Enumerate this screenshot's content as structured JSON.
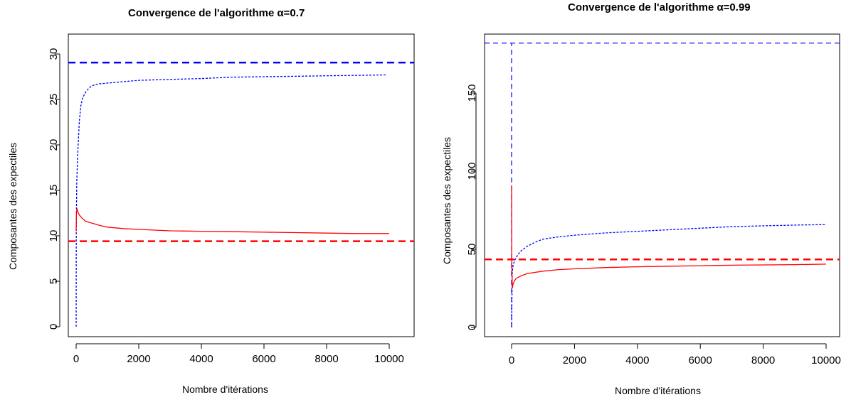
{
  "chart_data": [
    {
      "type": "line",
      "title": "Convergence de l'algorithme α=0.7",
      "xlabel": "Nombre d'itérations",
      "ylabel": "Composantes des expectiles",
      "xlim": [
        0,
        10000
      ],
      "ylim": [
        0,
        30
      ],
      "xticks": [
        "0",
        "2000",
        "4000",
        "6000",
        "8000",
        "10000"
      ],
      "yticks": [
        "0",
        "5",
        "10",
        "15",
        "20",
        "25",
        "30"
      ],
      "xtick_values": [
        0,
        2000,
        4000,
        6000,
        8000,
        10000
      ],
      "ytick_values": [
        0,
        5,
        10,
        15,
        20,
        25,
        30
      ],
      "hlines": [
        {
          "y": 29.05,
          "color": "#0000ff"
        },
        {
          "y": 9.4,
          "color": "#ff0000"
        }
      ],
      "series": [
        {
          "color": "#0000ff",
          "style": "dashed",
          "x": [
            0,
            5,
            20,
            50,
            100,
            150,
            200,
            300,
            400,
            500,
            700,
            1000,
            1500,
            2000,
            3000,
            4000,
            5000,
            6000,
            7000,
            8000,
            9000,
            9900
          ],
          "y": [
            0,
            11,
            16,
            19,
            22.5,
            24.3,
            25.1,
            25.8,
            26.2,
            26.5,
            26.7,
            26.8,
            26.95,
            27.1,
            27.2,
            27.3,
            27.45,
            27.5,
            27.55,
            27.6,
            27.65,
            27.7
          ]
        },
        {
          "color": "#ff0000",
          "style": "solid",
          "x": [
            0,
            10,
            30,
            60,
            100,
            200,
            300,
            500,
            800,
            1000,
            1500,
            2000,
            3000,
            4000,
            5000,
            6000,
            7000,
            8000,
            9000,
            10000
          ],
          "y": [
            10.5,
            12.5,
            13.0,
            12.6,
            12.3,
            11.9,
            11.6,
            11.4,
            11.1,
            10.95,
            10.8,
            10.7,
            10.55,
            10.5,
            10.45,
            10.4,
            10.35,
            10.3,
            10.25,
            10.25
          ]
        }
      ]
    },
    {
      "type": "line",
      "title": "Convergence de l'algorithme α=0.99",
      "xlabel": "Nombre d'itérations",
      "ylabel": "Composantes des expectiles",
      "xlim": [
        0,
        10000
      ],
      "ylim": [
        0,
        182
      ],
      "xticks": [
        "0",
        "2000",
        "4000",
        "6000",
        "8000",
        "10000"
      ],
      "yticks": [
        "0",
        "50",
        "100",
        "150"
      ],
      "xtick_values": [
        0,
        2000,
        4000,
        6000,
        8000,
        10000
      ],
      "ytick_values": [
        0,
        50,
        100,
        150
      ],
      "hlines": [
        {
          "y": 182,
          "color": "#0000ff",
          "style": "thin-dashed"
        },
        {
          "y": 43.5,
          "color": "#ff0000"
        }
      ],
      "vlines": [
        {
          "x": 0,
          "y_from": 0,
          "y_to": 182,
          "color": "#0000ff"
        }
      ],
      "series": [
        {
          "color": "#0000ff",
          "style": "dashed",
          "x": [
            0,
            20,
            50,
            100,
            200,
            300,
            500,
            800,
            1000,
            1500,
            2000,
            3000,
            4000,
            5000,
            6000,
            7000,
            8000,
            9000,
            10000
          ],
          "y": [
            0,
            35,
            40,
            43,
            46.5,
            49,
            52,
            55,
            56.5,
            58,
            59,
            60.5,
            61.5,
            62.5,
            63.5,
            64.5,
            65.0,
            65.5,
            65.8
          ]
        },
        {
          "color": "#ff0000",
          "style": "solid",
          "x": [
            0,
            5,
            20,
            50,
            100,
            150,
            300,
            500,
            1000,
            1500,
            2000,
            3000,
            4000,
            5000,
            6000,
            7000,
            8000,
            9000,
            10000
          ],
          "y": [
            91,
            45,
            25,
            28,
            30,
            31.5,
            33,
            34.5,
            36,
            37,
            37.5,
            38.3,
            38.8,
            39.2,
            39.5,
            39.8,
            40.0,
            40.2,
            40.5
          ]
        }
      ]
    }
  ]
}
